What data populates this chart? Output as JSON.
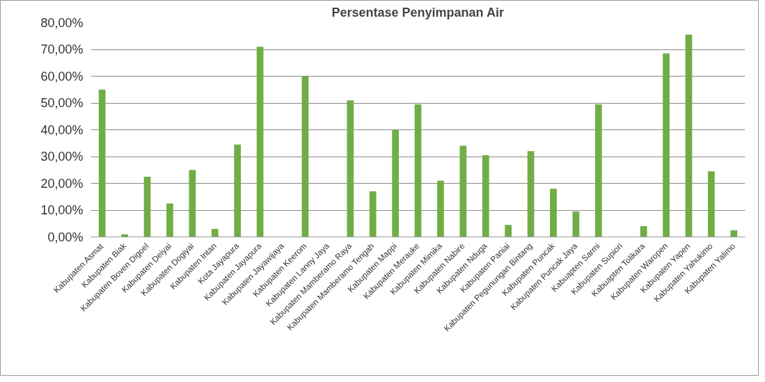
{
  "chart_data": {
    "type": "bar",
    "title": "Persentase Penyimpanan Air",
    "categories": [
      "Kabupaten Asmat",
      "Kabupaten Biak",
      "Kabupaten Boven Digoel",
      "Kabupaten Deiyai",
      "Kabupaten Dogiyai",
      "Kabupaten Intan",
      "Kota Jayapura",
      "Kabupaten Jayapura",
      "Kabupaten Jayawijaya",
      "Kabupaten Keerom",
      "Kabupaten Lanny Jaya",
      "Kabupaten Mamberamo Raya",
      "Kabupaten Mamberamo Tengah",
      "Kabupaten Mappi",
      "Kabupaten Merauke",
      "Kabupaten Mimika",
      "Kabupaten Nabire",
      "Kabupaten Nduga",
      "Kabupaten Paniai",
      "Kabupaten Pegunungan Bintang",
      "Kabupaten Puncak",
      "Kabupaten Puncak Jaya",
      "Kabuapten Sarmi",
      "Kabupaten Supiori",
      "Kabuapten Tolikara",
      "Kabupaten Waropen",
      "Kabupaten Yapen",
      "Kabupaten Yahukimo",
      "Kabupaten Yalimo"
    ],
    "values": [
      55,
      1,
      22.5,
      12.5,
      25,
      3,
      34.5,
      71,
      0,
      60,
      0,
      51,
      17,
      40,
      49.5,
      21,
      34,
      30.5,
      4.5,
      32,
      18,
      9.5,
      49.5,
      0,
      4,
      68.5,
      75.5,
      24.5,
      2.5
    ],
    "color": "#70ad47",
    "ylim": [
      0,
      80
    ],
    "yticks": [
      {
        "value": 0,
        "label": "0,00%"
      },
      {
        "value": 10,
        "label": "10,00%"
      },
      {
        "value": 20,
        "label": "20,00%"
      },
      {
        "value": 30,
        "label": "30,00%"
      },
      {
        "value": 40,
        "label": "40,00%"
      },
      {
        "value": 50,
        "label": "50,00%"
      },
      {
        "value": 60,
        "label": "60,00%"
      },
      {
        "value": 70,
        "label": "70,00%"
      },
      {
        "value": 80,
        "label": "80,00%"
      }
    ],
    "grid": "y"
  }
}
